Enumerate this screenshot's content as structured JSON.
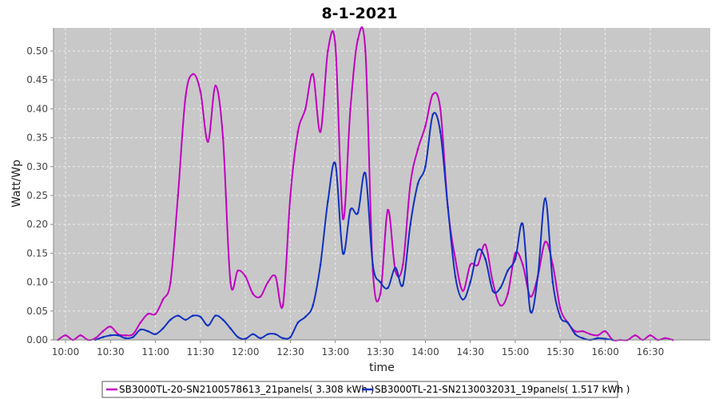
{
  "chart_data": {
    "type": "line",
    "title": "8-1-2021",
    "xlabel": "time",
    "ylabel": "Watt/Wp",
    "xlim": [
      "09:52",
      "17:10"
    ],
    "ylim": [
      0,
      0.54
    ],
    "xticks": [
      "10:00",
      "10:30",
      "11:00",
      "11:30",
      "12:00",
      "12:30",
      "13:00",
      "13:30",
      "14:00",
      "14:30",
      "15:00",
      "15:30",
      "16:00",
      "16:30"
    ],
    "yticks": [
      "0.00",
      "0.05",
      "0.10",
      "0.15",
      "0.20",
      "0.25",
      "0.30",
      "0.35",
      "0.40",
      "0.45",
      "0.50"
    ],
    "grid": true,
    "legend_position": "bottom",
    "colors": {
      "plot_background": "#c8c8c8",
      "grid": "#eeeeee"
    },
    "series": [
      {
        "name": "SB3000TL-20-SN2100578613_21panels( 3.308 kWh )",
        "color": "#c000c0",
        "points": [
          [
            "09:55",
            0.0
          ],
          [
            "10:00",
            0.008
          ],
          [
            "10:05",
            0.0
          ],
          [
            "10:10",
            0.008
          ],
          [
            "10:15",
            0.0
          ],
          [
            "10:20",
            0.003
          ],
          [
            "10:25",
            0.015
          ],
          [
            "10:30",
            0.023
          ],
          [
            "10:35",
            0.01
          ],
          [
            "10:40",
            0.008
          ],
          [
            "10:45",
            0.01
          ],
          [
            "10:50",
            0.03
          ],
          [
            "10:55",
            0.045
          ],
          [
            "11:00",
            0.045
          ],
          [
            "11:05",
            0.07
          ],
          [
            "11:10",
            0.1
          ],
          [
            "11:15",
            0.25
          ],
          [
            "11:20",
            0.42
          ],
          [
            "11:25",
            0.46
          ],
          [
            "11:30",
            0.43
          ],
          [
            "11:35",
            0.343
          ],
          [
            "11:40",
            0.44
          ],
          [
            "11:45",
            0.35
          ],
          [
            "11:50",
            0.1
          ],
          [
            "11:55",
            0.12
          ],
          [
            "12:00",
            0.11
          ],
          [
            "12:05",
            0.08
          ],
          [
            "12:10",
            0.075
          ],
          [
            "12:15",
            0.1
          ],
          [
            "12:20",
            0.11
          ],
          [
            "12:25",
            0.06
          ],
          [
            "12:30",
            0.25
          ],
          [
            "12:35",
            0.36
          ],
          [
            "12:40",
            0.4
          ],
          [
            "12:45",
            0.46
          ],
          [
            "12:50",
            0.36
          ],
          [
            "12:55",
            0.5
          ],
          [
            "13:00",
            0.51
          ],
          [
            "13:05",
            0.21
          ],
          [
            "13:10",
            0.4
          ],
          [
            "13:15",
            0.52
          ],
          [
            "13:20",
            0.5
          ],
          [
            "13:25",
            0.12
          ],
          [
            "13:30",
            0.08
          ],
          [
            "13:35",
            0.225
          ],
          [
            "13:40",
            0.12
          ],
          [
            "13:45",
            0.13
          ],
          [
            "13:50",
            0.27
          ],
          [
            "13:55",
            0.33
          ],
          [
            "14:00",
            0.37
          ],
          [
            "14:05",
            0.425
          ],
          [
            "14:10",
            0.4
          ],
          [
            "14:15",
            0.23
          ],
          [
            "14:20",
            0.14
          ],
          [
            "14:25",
            0.085
          ],
          [
            "14:30",
            0.13
          ],
          [
            "14:35",
            0.13
          ],
          [
            "14:40",
            0.165
          ],
          [
            "14:45",
            0.1
          ],
          [
            "14:50",
            0.06
          ],
          [
            "14:55",
            0.08
          ],
          [
            "15:00",
            0.15
          ],
          [
            "15:05",
            0.13
          ],
          [
            "15:10",
            0.075
          ],
          [
            "15:15",
            0.11
          ],
          [
            "15:20",
            0.17
          ],
          [
            "15:25",
            0.13
          ],
          [
            "15:30",
            0.055
          ],
          [
            "15:35",
            0.03
          ],
          [
            "15:40",
            0.015
          ],
          [
            "15:45",
            0.015
          ],
          [
            "15:50",
            0.01
          ],
          [
            "15:55",
            0.008
          ],
          [
            "16:00",
            0.015
          ],
          [
            "16:05",
            0.0
          ],
          [
            "16:10",
            0.0
          ],
          [
            "16:15",
            0.0
          ],
          [
            "16:20",
            0.008
          ],
          [
            "16:25",
            0.0
          ],
          [
            "16:30",
            0.008
          ],
          [
            "16:35",
            0.0
          ],
          [
            "16:40",
            0.003
          ],
          [
            "16:45",
            0.0
          ]
        ]
      },
      {
        "name": "SB3000TL-21-SN2130032031_19panels( 1.517 kWh )",
        "color": "#1030c0",
        "points": [
          [
            "10:20",
            0.0
          ],
          [
            "10:25",
            0.005
          ],
          [
            "10:30",
            0.008
          ],
          [
            "10:35",
            0.008
          ],
          [
            "10:40",
            0.003
          ],
          [
            "10:45",
            0.005
          ],
          [
            "10:50",
            0.018
          ],
          [
            "10:55",
            0.015
          ],
          [
            "11:00",
            0.01
          ],
          [
            "11:05",
            0.02
          ],
          [
            "11:10",
            0.035
          ],
          [
            "11:15",
            0.042
          ],
          [
            "11:20",
            0.035
          ],
          [
            "11:25",
            0.042
          ],
          [
            "11:30",
            0.04
          ],
          [
            "11:35",
            0.025
          ],
          [
            "11:40",
            0.042
          ],
          [
            "11:45",
            0.035
          ],
          [
            "11:50",
            0.02
          ],
          [
            "11:55",
            0.005
          ],
          [
            "12:00",
            0.002
          ],
          [
            "12:05",
            0.01
          ],
          [
            "12:10",
            0.003
          ],
          [
            "12:15",
            0.01
          ],
          [
            "12:20",
            0.01
          ],
          [
            "12:25",
            0.003
          ],
          [
            "12:30",
            0.005
          ],
          [
            "12:35",
            0.03
          ],
          [
            "12:40",
            0.04
          ],
          [
            "12:45",
            0.06
          ],
          [
            "12:50",
            0.13
          ],
          [
            "12:55",
            0.24
          ],
          [
            "13:00",
            0.305
          ],
          [
            "13:05",
            0.15
          ],
          [
            "13:10",
            0.225
          ],
          [
            "13:15",
            0.22
          ],
          [
            "13:20",
            0.288
          ],
          [
            "13:25",
            0.13
          ],
          [
            "13:30",
            0.1
          ],
          [
            "13:35",
            0.09
          ],
          [
            "13:40",
            0.125
          ],
          [
            "13:45",
            0.095
          ],
          [
            "13:50",
            0.2
          ],
          [
            "13:55",
            0.27
          ],
          [
            "14:00",
            0.3
          ],
          [
            "14:05",
            0.39
          ],
          [
            "14:10",
            0.36
          ],
          [
            "14:15",
            0.23
          ],
          [
            "14:20",
            0.11
          ],
          [
            "14:25",
            0.07
          ],
          [
            "14:30",
            0.1
          ],
          [
            "14:35",
            0.155
          ],
          [
            "14:40",
            0.14
          ],
          [
            "14:45",
            0.085
          ],
          [
            "14:50",
            0.09
          ],
          [
            "14:55",
            0.12
          ],
          [
            "15:00",
            0.14
          ],
          [
            "15:05",
            0.2
          ],
          [
            "15:10",
            0.05
          ],
          [
            "15:15",
            0.11
          ],
          [
            "15:20",
            0.245
          ],
          [
            "15:25",
            0.1
          ],
          [
            "15:30",
            0.04
          ],
          [
            "15:35",
            0.03
          ],
          [
            "15:40",
            0.01
          ],
          [
            "15:45",
            0.003
          ],
          [
            "15:50",
            0.0
          ],
          [
            "15:55",
            0.003
          ],
          [
            "16:00",
            0.002
          ],
          [
            "16:05",
            0.0
          ]
        ]
      }
    ]
  }
}
